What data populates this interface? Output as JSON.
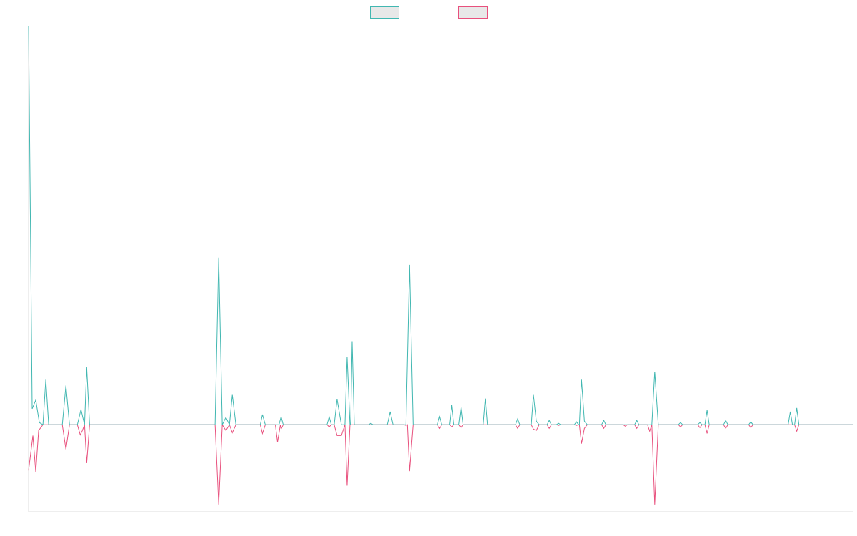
{
  "chart_data": {
    "type": "line",
    "title": "",
    "xlabel": "",
    "ylabel": "",
    "legend": {
      "placement": "top-center",
      "entries": [
        {
          "name": "",
          "color": "#41b7b1",
          "fill": "#e8e8e8"
        },
        {
          "name": "",
          "color": "#e8507d",
          "fill": "#e8e8e8"
        }
      ]
    },
    "grid": false,
    "xlim": [
      0,
      115
    ],
    "ylim": [
      -12,
      55
    ],
    "series": [
      {
        "name": "",
        "color": "#41b7b1",
        "points": [
          [
            0,
            55
          ],
          [
            0.5,
            2.2
          ],
          [
            1,
            3.4
          ],
          [
            1.5,
            0.3
          ],
          [
            2,
            0
          ],
          [
            2.4,
            6.2
          ],
          [
            2.8,
            0
          ],
          [
            3,
            0
          ],
          [
            4.7,
            0
          ],
          [
            5.2,
            5.4
          ],
          [
            5.7,
            0
          ],
          [
            6.8,
            0
          ],
          [
            7.3,
            2.1
          ],
          [
            7.8,
            0
          ],
          [
            8.1,
            7.9
          ],
          [
            8.5,
            0
          ],
          [
            26,
            0
          ],
          [
            26.5,
            23
          ],
          [
            27,
            0
          ],
          [
            27.5,
            1
          ],
          [
            28,
            0
          ],
          [
            28.4,
            4.1
          ],
          [
            28.9,
            0
          ],
          [
            32.3,
            0
          ],
          [
            32.6,
            1.4
          ],
          [
            33,
            0
          ],
          [
            34.9,
            0
          ],
          [
            35.2,
            1.1
          ],
          [
            35.5,
            0
          ],
          [
            41.6,
            0
          ],
          [
            41.9,
            1.1
          ],
          [
            42.2,
            0
          ],
          [
            42.6,
            0
          ],
          [
            43,
            3.5
          ],
          [
            43.6,
            0
          ],
          [
            44.1,
            0
          ],
          [
            44.4,
            9.3
          ],
          [
            44.8,
            0
          ],
          [
            44.9,
            0
          ],
          [
            45.1,
            11.5
          ],
          [
            45.4,
            0
          ],
          [
            47.4,
            0
          ],
          [
            47.7,
            0.2
          ],
          [
            48,
            0
          ],
          [
            50,
            0
          ],
          [
            50.4,
            1.8
          ],
          [
            50.8,
            0
          ],
          [
            52.6,
            0
          ],
          [
            53.1,
            22
          ],
          [
            53.6,
            0
          ],
          [
            57,
            0
          ],
          [
            57.3,
            1.1
          ],
          [
            57.6,
            0
          ],
          [
            58.7,
            0
          ],
          [
            59,
            2.7
          ],
          [
            59.3,
            0
          ],
          [
            60,
            0
          ],
          [
            60.3,
            2.4
          ],
          [
            60.6,
            0
          ],
          [
            63.4,
            0
          ],
          [
            63.7,
            3.6
          ],
          [
            64,
            0
          ],
          [
            67.9,
            0
          ],
          [
            68.2,
            0.8
          ],
          [
            68.5,
            0
          ],
          [
            70.1,
            0
          ],
          [
            70.4,
            4.1
          ],
          [
            70.8,
            0.5
          ],
          [
            71.2,
            0
          ],
          [
            72.3,
            0
          ],
          [
            72.6,
            0.6
          ],
          [
            72.9,
            0
          ],
          [
            73.6,
            0
          ],
          [
            73.9,
            0.2
          ],
          [
            74.2,
            0
          ],
          [
            76.1,
            0
          ],
          [
            76.4,
            0.4
          ],
          [
            76.7,
            0
          ],
          [
            76.8,
            0
          ],
          [
            77.1,
            6.2
          ],
          [
            77.5,
            0.5
          ],
          [
            77.9,
            0
          ],
          [
            79.9,
            0
          ],
          [
            80.2,
            0.6
          ],
          [
            80.5,
            0
          ],
          [
            84.5,
            0
          ],
          [
            84.8,
            0.6
          ],
          [
            85.1,
            0
          ],
          [
            86.9,
            0
          ],
          [
            87.3,
            7.3
          ],
          [
            87.8,
            0
          ],
          [
            90.6,
            0
          ],
          [
            90.9,
            0.3
          ],
          [
            91.2,
            0
          ],
          [
            93.3,
            0
          ],
          [
            93.6,
            0.3
          ],
          [
            93.9,
            0
          ],
          [
            94.3,
            0
          ],
          [
            94.6,
            2
          ],
          [
            94.9,
            0
          ],
          [
            96.9,
            0
          ],
          [
            97.2,
            0.6
          ],
          [
            97.5,
            0
          ],
          [
            100.4,
            0
          ],
          [
            100.7,
            0.4
          ],
          [
            101,
            0
          ],
          [
            105.9,
            0
          ],
          [
            106.2,
            1.8
          ],
          [
            106.5,
            0
          ],
          [
            106.8,
            0
          ],
          [
            107.1,
            2.3
          ],
          [
            107.4,
            0
          ],
          [
            115,
            0
          ]
        ]
      },
      {
        "name": "",
        "color": "#e8507d",
        "points": [
          [
            0,
            -6.3
          ],
          [
            0.6,
            -1.5
          ],
          [
            1,
            -6.5
          ],
          [
            1.4,
            -0.8
          ],
          [
            2,
            0
          ],
          [
            4.7,
            0
          ],
          [
            5.2,
            -3.4
          ],
          [
            5.7,
            0
          ],
          [
            6.8,
            0
          ],
          [
            7.2,
            -1.4
          ],
          [
            7.5,
            -0.8
          ],
          [
            7.8,
            0
          ],
          [
            8.1,
            -5.3
          ],
          [
            8.5,
            0
          ],
          [
            26,
            0
          ],
          [
            26.5,
            -11
          ],
          [
            27,
            0
          ],
          [
            27.5,
            -0.8
          ],
          [
            28,
            0
          ],
          [
            28.4,
            -1.1
          ],
          [
            28.9,
            0
          ],
          [
            32.3,
            0
          ],
          [
            32.6,
            -1.2
          ],
          [
            33,
            0
          ],
          [
            34.4,
            0
          ],
          [
            34.7,
            -2.4
          ],
          [
            35.1,
            0
          ],
          [
            35.2,
            -0.6
          ],
          [
            35.5,
            0
          ],
          [
            41.6,
            0
          ],
          [
            41.9,
            -0.3
          ],
          [
            42.2,
            0
          ],
          [
            42.6,
            0
          ],
          [
            43,
            -1.5
          ],
          [
            43.6,
            -1.5
          ],
          [
            44.1,
            0
          ],
          [
            44.4,
            -8.4
          ],
          [
            44.8,
            0
          ],
          [
            52.3,
            0
          ],
          [
            52.6,
            -0.1
          ],
          [
            52.8,
            0
          ],
          [
            53.1,
            -6.4
          ],
          [
            53.6,
            0
          ],
          [
            57,
            0
          ],
          [
            57.3,
            -0.5
          ],
          [
            57.6,
            0
          ],
          [
            58.7,
            0
          ],
          [
            59,
            -0.3
          ],
          [
            59.3,
            0
          ],
          [
            60,
            0
          ],
          [
            60.3,
            -0.4
          ],
          [
            60.6,
            0
          ],
          [
            67.9,
            0
          ],
          [
            68.2,
            -0.5
          ],
          [
            68.5,
            0
          ],
          [
            70.1,
            0
          ],
          [
            70.4,
            -0.6
          ],
          [
            70.8,
            -0.8
          ],
          [
            71.2,
            0
          ],
          [
            72.3,
            0
          ],
          [
            72.6,
            -0.5
          ],
          [
            72.9,
            0
          ],
          [
            73.6,
            0
          ],
          [
            73.9,
            -0.1
          ],
          [
            74.2,
            0
          ],
          [
            76.1,
            0
          ],
          [
            76.4,
            -0.1
          ],
          [
            76.7,
            0
          ],
          [
            76.8,
            0
          ],
          [
            77.1,
            -2.6
          ],
          [
            77.5,
            -0.5
          ],
          [
            77.9,
            0
          ],
          [
            79.9,
            0
          ],
          [
            80.2,
            -0.5
          ],
          [
            80.5,
            0
          ],
          [
            82.9,
            0
          ],
          [
            83.2,
            -0.2
          ],
          [
            83.5,
            0
          ],
          [
            84.5,
            0
          ],
          [
            84.8,
            -0.5
          ],
          [
            85.1,
            0
          ],
          [
            86.3,
            0
          ],
          [
            86.6,
            -0.9
          ],
          [
            86.9,
            0
          ],
          [
            87.3,
            -11
          ],
          [
            87.8,
            0
          ],
          [
            90.6,
            0
          ],
          [
            90.9,
            -0.3
          ],
          [
            91.2,
            0
          ],
          [
            93.3,
            0
          ],
          [
            93.6,
            -0.4
          ],
          [
            93.9,
            0
          ],
          [
            94.3,
            0
          ],
          [
            94.6,
            -1.2
          ],
          [
            94.9,
            0
          ],
          [
            96.9,
            0
          ],
          [
            97.2,
            -0.5
          ],
          [
            97.5,
            0
          ],
          [
            100.4,
            0
          ],
          [
            100.7,
            -0.4
          ],
          [
            101,
            0
          ],
          [
            106.8,
            0
          ],
          [
            107.1,
            -0.9
          ],
          [
            107.4,
            0
          ],
          [
            115,
            0
          ]
        ]
      }
    ]
  }
}
